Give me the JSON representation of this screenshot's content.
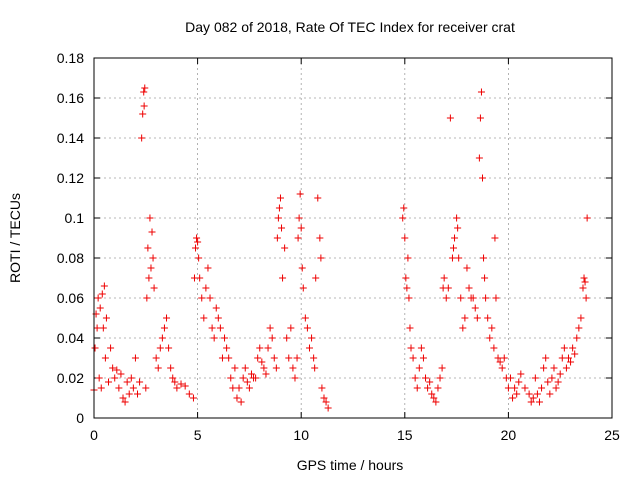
{
  "chart_data": {
    "type": "scatter",
    "title": "Day 082 of 2018, Rate Of TEC Index for receiver crat",
    "xlabel": "GPS time / hours",
    "ylabel": "ROTI / TECUs",
    "xlim": [
      0,
      25
    ],
    "ylim": [
      0,
      0.18
    ],
    "x_ticks": [
      "0",
      "5",
      "10",
      "15",
      "20",
      "25"
    ],
    "y_ticks": [
      "0",
      "0.02",
      "0.04",
      "0.06",
      "0.08",
      "0.1",
      "0.12",
      "0.14",
      "0.16",
      "0.18"
    ],
    "grid": true,
    "marker": "+",
    "color": "#ee0000",
    "series": [
      {
        "name": "ROTI",
        "points": [
          [
            0.0,
            0.014
          ],
          [
            0.05,
            0.035
          ],
          [
            0.1,
            0.052
          ],
          [
            0.15,
            0.045
          ],
          [
            0.2,
            0.06
          ],
          [
            0.25,
            0.02
          ],
          [
            0.3,
            0.055
          ],
          [
            0.35,
            0.015
          ],
          [
            0.4,
            0.062
          ],
          [
            0.45,
            0.045
          ],
          [
            0.5,
            0.066
          ],
          [
            0.55,
            0.03
          ],
          [
            0.6,
            0.05
          ],
          [
            0.7,
            0.018
          ],
          [
            0.8,
            0.035
          ],
          [
            0.9,
            0.025
          ],
          [
            1.0,
            0.02
          ],
          [
            1.1,
            0.024
          ],
          [
            1.2,
            0.015
          ],
          [
            1.3,
            0.022
          ],
          [
            1.4,
            0.01
          ],
          [
            1.5,
            0.008
          ],
          [
            1.6,
            0.018
          ],
          [
            1.7,
            0.012
          ],
          [
            1.8,
            0.02
          ],
          [
            1.9,
            0.015
          ],
          [
            2.0,
            0.03
          ],
          [
            2.1,
            0.012
          ],
          [
            2.2,
            0.018
          ],
          [
            2.3,
            0.14
          ],
          [
            2.35,
            0.152
          ],
          [
            2.4,
            0.163
          ],
          [
            2.42,
            0.156
          ],
          [
            2.45,
            0.165
          ],
          [
            2.5,
            0.015
          ],
          [
            2.55,
            0.06
          ],
          [
            2.6,
            0.085
          ],
          [
            2.65,
            0.07
          ],
          [
            2.7,
            0.1
          ],
          [
            2.75,
            0.075
          ],
          [
            2.8,
            0.093
          ],
          [
            2.85,
            0.08
          ],
          [
            2.9,
            0.065
          ],
          [
            3.0,
            0.03
          ],
          [
            3.1,
            0.025
          ],
          [
            3.2,
            0.035
          ],
          [
            3.3,
            0.04
          ],
          [
            3.4,
            0.045
          ],
          [
            3.5,
            0.05
          ],
          [
            3.6,
            0.035
          ],
          [
            3.7,
            0.025
          ],
          [
            3.8,
            0.02
          ],
          [
            3.9,
            0.018
          ],
          [
            4.0,
            0.015
          ],
          [
            4.2,
            0.017
          ],
          [
            4.4,
            0.016
          ],
          [
            4.6,
            0.012
          ],
          [
            4.8,
            0.01
          ],
          [
            4.85,
            0.07
          ],
          [
            4.9,
            0.085
          ],
          [
            4.95,
            0.09
          ],
          [
            5.0,
            0.088
          ],
          [
            5.05,
            0.08
          ],
          [
            5.1,
            0.07
          ],
          [
            5.2,
            0.06
          ],
          [
            5.3,
            0.05
          ],
          [
            5.4,
            0.065
          ],
          [
            5.5,
            0.075
          ],
          [
            5.6,
            0.06
          ],
          [
            5.7,
            0.045
          ],
          [
            5.8,
            0.04
          ],
          [
            5.9,
            0.055
          ],
          [
            6.0,
            0.05
          ],
          [
            6.1,
            0.045
          ],
          [
            6.2,
            0.03
          ],
          [
            6.3,
            0.04
          ],
          [
            6.4,
            0.035
          ],
          [
            6.5,
            0.03
          ],
          [
            6.6,
            0.02
          ],
          [
            6.7,
            0.015
          ],
          [
            6.8,
            0.025
          ],
          [
            6.9,
            0.01
          ],
          [
            7.0,
            0.015
          ],
          [
            7.1,
            0.008
          ],
          [
            7.2,
            0.02
          ],
          [
            7.3,
            0.025
          ],
          [
            7.4,
            0.018
          ],
          [
            7.5,
            0.015
          ],
          [
            7.6,
            0.022
          ],
          [
            7.7,
            0.02
          ],
          [
            7.8,
            0.02
          ],
          [
            7.9,
            0.03
          ],
          [
            8.0,
            0.035
          ],
          [
            8.1,
            0.028
          ],
          [
            8.2,
            0.025
          ],
          [
            8.3,
            0.022
          ],
          [
            8.4,
            0.035
          ],
          [
            8.5,
            0.045
          ],
          [
            8.6,
            0.04
          ],
          [
            8.7,
            0.03
          ],
          [
            8.8,
            0.025
          ],
          [
            8.85,
            0.09
          ],
          [
            8.9,
            0.1
          ],
          [
            8.95,
            0.105
          ],
          [
            9.0,
            0.11
          ],
          [
            9.05,
            0.095
          ],
          [
            9.1,
            0.07
          ],
          [
            9.2,
            0.085
          ],
          [
            9.3,
            0.04
          ],
          [
            9.4,
            0.03
          ],
          [
            9.5,
            0.045
          ],
          [
            9.6,
            0.025
          ],
          [
            9.7,
            0.02
          ],
          [
            9.8,
            0.03
          ],
          [
            9.85,
            0.09
          ],
          [
            9.9,
            0.1
          ],
          [
            9.95,
            0.112
          ],
          [
            10.0,
            0.095
          ],
          [
            10.05,
            0.075
          ],
          [
            10.1,
            0.065
          ],
          [
            10.2,
            0.05
          ],
          [
            10.3,
            0.045
          ],
          [
            10.4,
            0.035
          ],
          [
            10.5,
            0.04
          ],
          [
            10.6,
            0.03
          ],
          [
            10.65,
            0.025
          ],
          [
            10.7,
            0.07
          ],
          [
            10.8,
            0.11
          ],
          [
            10.9,
            0.09
          ],
          [
            10.95,
            0.08
          ],
          [
            11.0,
            0.015
          ],
          [
            11.1,
            0.01
          ],
          [
            11.2,
            0.008
          ],
          [
            11.3,
            0.005
          ],
          [
            14.9,
            0.1
          ],
          [
            14.95,
            0.105
          ],
          [
            15.0,
            0.09
          ],
          [
            15.05,
            0.07
          ],
          [
            15.1,
            0.065
          ],
          [
            15.15,
            0.08
          ],
          [
            15.2,
            0.06
          ],
          [
            15.25,
            0.045
          ],
          [
            15.3,
            0.035
          ],
          [
            15.4,
            0.03
          ],
          [
            15.5,
            0.02
          ],
          [
            15.6,
            0.015
          ],
          [
            15.7,
            0.025
          ],
          [
            15.8,
            0.035
          ],
          [
            15.9,
            0.03
          ],
          [
            16.0,
            0.02
          ],
          [
            16.1,
            0.015
          ],
          [
            16.2,
            0.018
          ],
          [
            16.3,
            0.012
          ],
          [
            16.4,
            0.01
          ],
          [
            16.5,
            0.008
          ],
          [
            16.6,
            0.015
          ],
          [
            16.7,
            0.02
          ],
          [
            16.8,
            0.025
          ],
          [
            16.85,
            0.065
          ],
          [
            16.9,
            0.07
          ],
          [
            17.0,
            0.06
          ],
          [
            17.1,
            0.065
          ],
          [
            17.2,
            0.15
          ],
          [
            17.3,
            0.08
          ],
          [
            17.35,
            0.085
          ],
          [
            17.4,
            0.09
          ],
          [
            17.5,
            0.1
          ],
          [
            17.55,
            0.095
          ],
          [
            17.6,
            0.08
          ],
          [
            17.7,
            0.06
          ],
          [
            17.8,
            0.045
          ],
          [
            17.9,
            0.05
          ],
          [
            18.0,
            0.075
          ],
          [
            18.1,
            0.065
          ],
          [
            18.2,
            0.06
          ],
          [
            18.3,
            0.06
          ],
          [
            18.4,
            0.055
          ],
          [
            18.5,
            0.05
          ],
          [
            18.6,
            0.13
          ],
          [
            18.65,
            0.15
          ],
          [
            18.7,
            0.163
          ],
          [
            18.75,
            0.12
          ],
          [
            18.8,
            0.08
          ],
          [
            18.85,
            0.07
          ],
          [
            18.9,
            0.06
          ],
          [
            19.0,
            0.05
          ],
          [
            19.1,
            0.04
          ],
          [
            19.2,
            0.045
          ],
          [
            19.3,
            0.035
          ],
          [
            19.35,
            0.09
          ],
          [
            19.4,
            0.06
          ],
          [
            19.5,
            0.03
          ],
          [
            19.6,
            0.028
          ],
          [
            19.7,
            0.025
          ],
          [
            19.8,
            0.03
          ],
          [
            19.9,
            0.02
          ],
          [
            20.0,
            0.015
          ],
          [
            20.1,
            0.02
          ],
          [
            20.2,
            0.01
          ],
          [
            20.3,
            0.015
          ],
          [
            20.4,
            0.012
          ],
          [
            20.5,
            0.018
          ],
          [
            20.6,
            0.022
          ],
          [
            20.8,
            0.015
          ],
          [
            21.0,
            0.012
          ],
          [
            21.1,
            0.008
          ],
          [
            21.2,
            0.01
          ],
          [
            21.3,
            0.02
          ],
          [
            21.4,
            0.012
          ],
          [
            21.5,
            0.008
          ],
          [
            21.6,
            0.015
          ],
          [
            21.7,
            0.025
          ],
          [
            21.8,
            0.03
          ],
          [
            21.9,
            0.018
          ],
          [
            22.0,
            0.012
          ],
          [
            22.1,
            0.02
          ],
          [
            22.2,
            0.025
          ],
          [
            22.3,
            0.015
          ],
          [
            22.4,
            0.018
          ],
          [
            22.5,
            0.022
          ],
          [
            22.6,
            0.03
          ],
          [
            22.7,
            0.035
          ],
          [
            22.8,
            0.025
          ],
          [
            22.9,
            0.03
          ],
          [
            23.0,
            0.028
          ],
          [
            23.1,
            0.035
          ],
          [
            23.2,
            0.032
          ],
          [
            23.3,
            0.04
          ],
          [
            23.4,
            0.045
          ],
          [
            23.5,
            0.05
          ],
          [
            23.6,
            0.065
          ],
          [
            23.65,
            0.07
          ],
          [
            23.7,
            0.068
          ],
          [
            23.75,
            0.06
          ],
          [
            23.8,
            0.1
          ]
        ]
      }
    ]
  }
}
